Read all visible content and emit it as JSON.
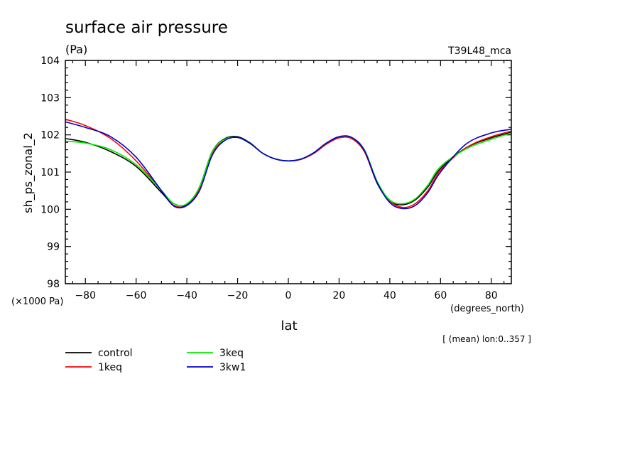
{
  "chart_data": {
    "type": "line",
    "title": "surface air pressure",
    "units": "(Pa)",
    "run_label": "T39L48_mca",
    "ylabel": "sh_ps_zonal_2",
    "xlabel": "lat",
    "x_units": "(degrees_north)",
    "y_scale_note": "(×1000 Pa)",
    "subset_note": "[ (mean) lon:0..357 ]",
    "xlim": [
      -87.9,
      87.9
    ],
    "ylim": [
      98,
      104
    ],
    "x_ticks": [
      -80,
      -60,
      -40,
      -20,
      0,
      20,
      40,
      60,
      80
    ],
    "y_ticks": [
      98,
      99,
      100,
      101,
      102,
      103,
      104
    ],
    "grid": false,
    "legend_position": "bottom-left",
    "series": [
      {
        "name": "control",
        "color": "#000000",
        "x": [
          -87.9,
          -80,
          -70,
          -60,
          -50,
          -45,
          -40,
          -35,
          -30,
          -25,
          -20,
          -15,
          -10,
          -5,
          0,
          5,
          10,
          15,
          20,
          25,
          30,
          35,
          40,
          45,
          50,
          55,
          60,
          70,
          80,
          87.9
        ],
        "y": [
          101.9,
          101.8,
          101.55,
          101.15,
          100.45,
          100.1,
          100.12,
          100.6,
          101.55,
          101.9,
          101.95,
          101.78,
          101.5,
          101.35,
          101.3,
          101.35,
          101.5,
          101.75,
          101.92,
          101.9,
          101.55,
          100.7,
          100.22,
          100.12,
          100.25,
          100.6,
          101.1,
          101.65,
          101.92,
          102.07
        ]
      },
      {
        "name": "1keq",
        "color": "#ff0000",
        "x": [
          -87.9,
          -80,
          -70,
          -60,
          -50,
          -45,
          -40,
          -35,
          -30,
          -25,
          -20,
          -15,
          -10,
          -5,
          0,
          5,
          10,
          15,
          20,
          25,
          30,
          35,
          40,
          45,
          50,
          55,
          60,
          70,
          80,
          87.9
        ],
        "y": [
          102.42,
          102.25,
          101.9,
          101.3,
          100.5,
          100.1,
          100.1,
          100.55,
          101.5,
          101.88,
          101.93,
          101.76,
          101.5,
          101.35,
          101.3,
          101.34,
          101.5,
          101.75,
          101.92,
          101.9,
          101.55,
          100.72,
          100.22,
          100.05,
          100.15,
          100.5,
          101.05,
          101.65,
          101.95,
          102.1
        ]
      },
      {
        "name": "3keq",
        "color": "#00ee00",
        "x": [
          -87.9,
          -80,
          -70,
          -60,
          -50,
          -45,
          -40,
          -35,
          -30,
          -25,
          -20,
          -15,
          -10,
          -5,
          0,
          5,
          10,
          15,
          20,
          25,
          30,
          35,
          40,
          45,
          50,
          55,
          60,
          70,
          80,
          87.9
        ],
        "y": [
          101.83,
          101.78,
          101.6,
          101.2,
          100.5,
          100.15,
          100.15,
          100.6,
          101.55,
          101.88,
          101.93,
          101.76,
          101.5,
          101.35,
          101.3,
          101.35,
          101.52,
          101.78,
          101.95,
          101.93,
          101.6,
          100.75,
          100.25,
          100.15,
          100.28,
          100.65,
          101.15,
          101.62,
          101.88,
          102.05
        ]
      },
      {
        "name": "3kw1",
        "color": "#0000cc",
        "x": [
          -87.9,
          -80,
          -70,
          -60,
          -50,
          -45,
          -40,
          -35,
          -30,
          -25,
          -20,
          -15,
          -10,
          -5,
          0,
          5,
          10,
          15,
          20,
          25,
          30,
          35,
          40,
          45,
          50,
          55,
          60,
          70,
          80,
          87.9
        ],
        "y": [
          102.35,
          102.2,
          101.95,
          101.4,
          100.5,
          100.08,
          100.1,
          100.5,
          101.45,
          101.85,
          101.93,
          101.77,
          101.5,
          101.35,
          101.3,
          101.35,
          101.52,
          101.78,
          101.95,
          101.93,
          101.58,
          100.72,
          100.18,
          100.02,
          100.1,
          100.45,
          101.0,
          101.75,
          102.05,
          102.15
        ]
      }
    ]
  }
}
